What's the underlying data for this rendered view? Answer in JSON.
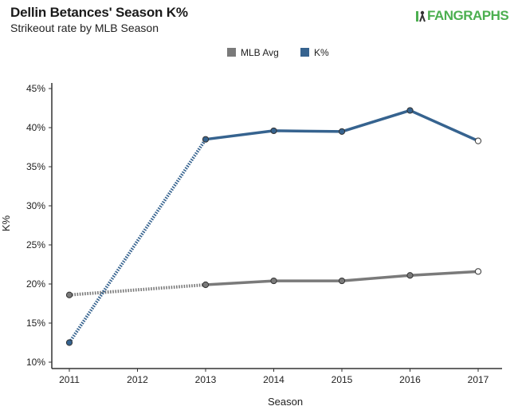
{
  "header": {
    "title": "Dellin Betances' Season K%",
    "subtitle": "Strikeout rate by MLB Season",
    "logo_text": "FANGRAPHS"
  },
  "colors": {
    "mlb_avg": "#7a7a7a",
    "k_pct": "#36638f",
    "logo": "#4caf50"
  },
  "chart_data": {
    "type": "line",
    "xlabel": "Season",
    "ylabel": "K%",
    "x": [
      2011,
      2012,
      2013,
      2014,
      2015,
      2016,
      2017
    ],
    "x_tick_labels": [
      "2011",
      "2012",
      "2013",
      "2014",
      "2015",
      "2016",
      "2017"
    ],
    "ylim": [
      10,
      45
    ],
    "y_ticks": [
      10,
      15,
      20,
      25,
      30,
      35,
      40,
      45
    ],
    "y_tick_labels": [
      "10%",
      "15%",
      "20%",
      "25%",
      "30%",
      "35%",
      "40%",
      "45%"
    ],
    "grid": false,
    "legend": "top-center",
    "series": [
      {
        "name": "MLB Avg",
        "key": "mlb_avg",
        "points": [
          {
            "x": 2011,
            "y": 18.6
          },
          {
            "x": 2013,
            "y": 19.9
          },
          {
            "x": 2014,
            "y": 20.4
          },
          {
            "x": 2015,
            "y": 20.4
          },
          {
            "x": 2016,
            "y": 21.1
          },
          {
            "x": 2017,
            "y": 21.6
          }
        ]
      },
      {
        "name": "K%",
        "key": "k_pct",
        "points": [
          {
            "x": 2011,
            "y": 12.5
          },
          {
            "x": 2013,
            "y": 38.5
          },
          {
            "x": 2014,
            "y": 39.6
          },
          {
            "x": 2015,
            "y": 39.5
          },
          {
            "x": 2016,
            "y": 42.2
          },
          {
            "x": 2017,
            "y": 38.3
          }
        ]
      }
    ]
  }
}
